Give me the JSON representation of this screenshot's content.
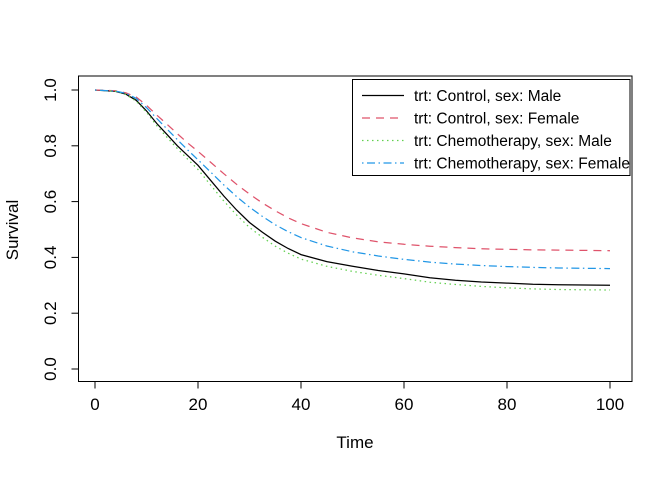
{
  "figure": {
    "background": "#ffffff",
    "border_color": "#000000"
  },
  "chart_data": {
    "type": "line",
    "title": "",
    "xlabel": "Time",
    "ylabel": "Survival",
    "xlim": [
      0,
      100
    ],
    "ylim": [
      0.0,
      1.0
    ],
    "grid": false,
    "legend_position": "top-right-inside",
    "x_ticks": [
      "0",
      "20",
      "40",
      "60",
      "80",
      "100"
    ],
    "x_tick_values": [
      0,
      20,
      40,
      60,
      80,
      100
    ],
    "y_ticks": [
      "0.0",
      "0.2",
      "0.4",
      "0.6",
      "0.8",
      "1.0"
    ],
    "y_tick_values": [
      0.0,
      0.2,
      0.4,
      0.6,
      0.8,
      1.0
    ],
    "x": [
      0,
      4,
      6,
      8,
      10,
      12,
      14,
      16,
      18,
      20,
      22.5,
      25,
      27.5,
      30,
      32.5,
      35,
      37.5,
      40,
      45,
      50,
      55,
      60,
      65,
      70,
      75,
      80,
      85,
      90,
      95,
      100
    ],
    "series": [
      {
        "name": "trt: Control, sex: Male",
        "color": "#000000",
        "linetype": "solid",
        "values": [
          1.0,
          0.995,
          0.985,
          0.963,
          0.925,
          0.88,
          0.84,
          0.8,
          0.765,
          0.73,
          0.675,
          0.62,
          0.57,
          0.525,
          0.49,
          0.458,
          0.432,
          0.41,
          0.385,
          0.368,
          0.353,
          0.341,
          0.327,
          0.318,
          0.312,
          0.308,
          0.304,
          0.302,
          0.301,
          0.3
        ]
      },
      {
        "name": "trt: Control, sex: Female",
        "color": "#DF536B",
        "linetype": "dashed",
        "values": [
          1.0,
          0.997,
          0.99,
          0.975,
          0.945,
          0.91,
          0.877,
          0.843,
          0.81,
          0.78,
          0.74,
          0.7,
          0.662,
          0.627,
          0.595,
          0.567,
          0.542,
          0.521,
          0.49,
          0.47,
          0.456,
          0.447,
          0.44,
          0.435,
          0.431,
          0.429,
          0.427,
          0.426,
          0.425,
          0.424
        ]
      },
      {
        "name": "trt: Chemotherapy, sex: Male",
        "color": "#61D04F",
        "linetype": "dotted",
        "values": [
          1.0,
          0.995,
          0.984,
          0.96,
          0.92,
          0.872,
          0.83,
          0.79,
          0.752,
          0.715,
          0.658,
          0.602,
          0.552,
          0.507,
          0.472,
          0.44,
          0.415,
          0.394,
          0.368,
          0.35,
          0.336,
          0.324,
          0.311,
          0.303,
          0.296,
          0.291,
          0.287,
          0.285,
          0.284,
          0.283
        ]
      },
      {
        "name": "trt: Chemotherapy, sex: Female",
        "color": "#2297E6",
        "linetype": "dotdash",
        "values": [
          1.0,
          0.996,
          0.988,
          0.97,
          0.937,
          0.898,
          0.86,
          0.822,
          0.785,
          0.75,
          0.705,
          0.66,
          0.618,
          0.58,
          0.547,
          0.517,
          0.492,
          0.471,
          0.441,
          0.42,
          0.405,
          0.393,
          0.383,
          0.376,
          0.371,
          0.367,
          0.364,
          0.362,
          0.361,
          0.36
        ]
      }
    ]
  }
}
